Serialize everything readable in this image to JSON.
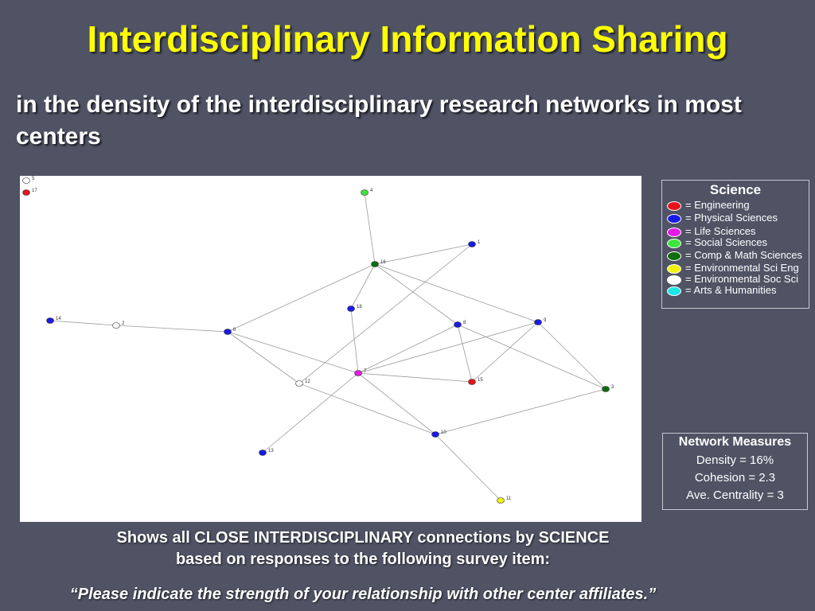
{
  "title": "Interdisciplinary Information Sharing",
  "subtitle": "in the density of the interdisciplinary research networks in most centers",
  "network": {
    "nodes": [
      {
        "id": "1",
        "science": "physical"
      },
      {
        "id": "2",
        "science": "env_soc"
      },
      {
        "id": "3",
        "science": "comp_math"
      },
      {
        "id": "4",
        "science": "social"
      },
      {
        "id": "5",
        "science": "env_soc"
      },
      {
        "id": "6",
        "science": "physical"
      },
      {
        "id": "7",
        "science": "life"
      },
      {
        "id": "8",
        "science": "physical"
      },
      {
        "id": "9",
        "science": "physical"
      },
      {
        "id": "10",
        "science": "physical"
      },
      {
        "id": "11",
        "science": "env_eng"
      },
      {
        "id": "12",
        "science": "env_soc"
      },
      {
        "id": "13",
        "science": "physical"
      },
      {
        "id": "14",
        "science": "physical"
      },
      {
        "id": "15",
        "science": "engineering"
      },
      {
        "id": "16",
        "science": "comp_math"
      },
      {
        "id": "17",
        "science": "engineering"
      },
      {
        "id": "18",
        "science": "physical"
      }
    ],
    "edges": [
      [
        "4",
        "16"
      ],
      [
        "16",
        "1"
      ],
      [
        "16",
        "18"
      ],
      [
        "16",
        "6"
      ],
      [
        "16",
        "9"
      ],
      [
        "16",
        "8"
      ],
      [
        "14",
        "2"
      ],
      [
        "2",
        "6"
      ],
      [
        "6",
        "7"
      ],
      [
        "6",
        "12"
      ],
      [
        "1",
        "12"
      ],
      [
        "18",
        "7"
      ],
      [
        "7",
        "15"
      ],
      [
        "7",
        "8"
      ],
      [
        "7",
        "9"
      ],
      [
        "7",
        "10"
      ],
      [
        "7",
        "13"
      ],
      [
        "8",
        "15"
      ],
      [
        "9",
        "15"
      ],
      [
        "9",
        "3"
      ],
      [
        "8",
        "3"
      ],
      [
        "12",
        "10"
      ],
      [
        "10",
        "3"
      ],
      [
        "10",
        "11"
      ]
    ]
  },
  "legend": {
    "title": "Science",
    "items": [
      {
        "key": "engineering",
        "label": "= Engineering",
        "color": "#e8141b"
      },
      {
        "key": "physical",
        "label": "= Physical Sciences",
        "color": "#1a1ae6"
      },
      {
        "key": "life",
        "label": "= Life Sciences",
        "color": "#e619e6"
      },
      {
        "key": "social",
        "label": "= Social Sciences",
        "color": "#3ce63c"
      },
      {
        "key": "comp_math",
        "label": "= Comp & Math Sciences",
        "color": "#0e6e0e"
      },
      {
        "key": "env_eng",
        "label": "= Environmental Sci Eng",
        "color": "#f2f20e"
      },
      {
        "key": "env_soc",
        "label": "= Environmental Soc Sci",
        "color": "#ffffff"
      },
      {
        "key": "arts",
        "label": "= Arts & Humanities",
        "color": "#1ee6e6"
      }
    ]
  },
  "measures": {
    "title": "Network Measures",
    "density": "Density = 16%",
    "cohesion": "Cohesion = 2.3",
    "centrality": "Ave. Centrality = 3"
  },
  "caption": {
    "line1": "Shows all CLOSE INTERDISCIPLINARY connections by SCIENCE",
    "line2": "based on responses to the following survey item:"
  },
  "quote": "“Please indicate the strength of your relationship with other center affiliates.”"
}
